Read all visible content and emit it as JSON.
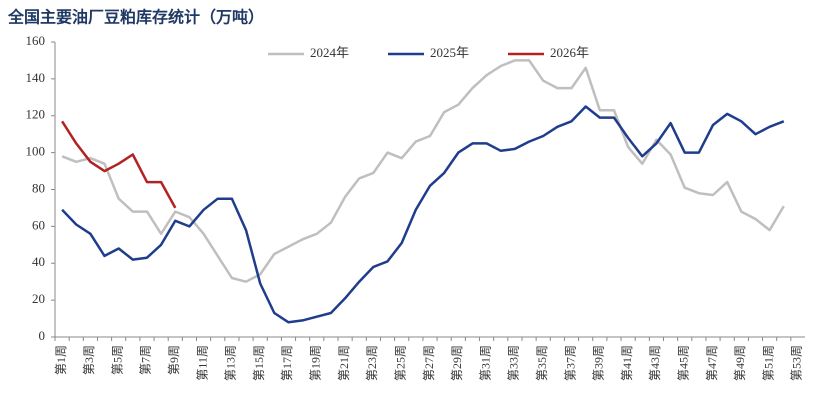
{
  "chart_data": {
    "type": "line",
    "title": "全国主要油厂豆粕库存统计（万吨）",
    "categories": [
      "第1周",
      null,
      "第3周",
      null,
      "第5周",
      null,
      "第7周",
      null,
      "第9周",
      null,
      "第11周",
      null,
      "第13周",
      null,
      "第15周",
      null,
      "第17周",
      null,
      "第19周",
      null,
      "第21周",
      null,
      "第23周",
      null,
      "第25周",
      null,
      "第27周",
      null,
      "第29周",
      null,
      "第31周",
      null,
      "第33周",
      null,
      "第35周",
      null,
      "第37周",
      null,
      "第39周",
      null,
      "第41周",
      null,
      "第43周",
      null,
      "第45周",
      null,
      "第47周",
      null,
      "第49周",
      null,
      "第51周",
      null,
      "第53周"
    ],
    "series": [
      {
        "name": "2024年",
        "color": "#bfbfbf",
        "values": [
          98,
          95,
          97,
          94,
          75,
          68,
          68,
          56,
          68,
          65,
          56,
          44,
          32,
          30,
          34,
          45,
          49,
          53,
          56,
          62,
          76,
          86,
          89,
          100,
          97,
          106,
          109,
          122,
          126,
          135,
          142,
          147,
          150,
          150,
          139,
          135,
          135,
          146,
          123,
          123,
          103,
          94,
          107,
          99,
          81,
          78,
          77,
          84,
          68,
          64,
          58,
          71,
          null
        ]
      },
      {
        "name": "2025年",
        "color": "#1f3d8c",
        "values": [
          69,
          61,
          56,
          44,
          48,
          42,
          43,
          50,
          63,
          60,
          69,
          75,
          75,
          58,
          29,
          13,
          8,
          9,
          11,
          13,
          21,
          30,
          38,
          41,
          51,
          69,
          82,
          89,
          100,
          105,
          105,
          101,
          102,
          106,
          109,
          114,
          117,
          125,
          119,
          119,
          108,
          98,
          105,
          116,
          100,
          100,
          115,
          121,
          117,
          110,
          114,
          117,
          null
        ]
      },
      {
        "name": "2026年",
        "color": "#b22222",
        "values": [
          117,
          105,
          95,
          90,
          94,
          99,
          84,
          84,
          70,
          null,
          null,
          null,
          null,
          null,
          null,
          null,
          null,
          null,
          null,
          null,
          null,
          null,
          null,
          null,
          null,
          null,
          null,
          null,
          null,
          null,
          null,
          null,
          null,
          null,
          null,
          null,
          null,
          null,
          null,
          null,
          null,
          null,
          null,
          null,
          null,
          null,
          null,
          null,
          null,
          null,
          null,
          null,
          null
        ]
      }
    ],
    "ylim": [
      0,
      160
    ],
    "yticks": [
      0,
      20,
      40,
      60,
      80,
      100,
      120,
      140,
      160
    ],
    "legend": "top"
  }
}
